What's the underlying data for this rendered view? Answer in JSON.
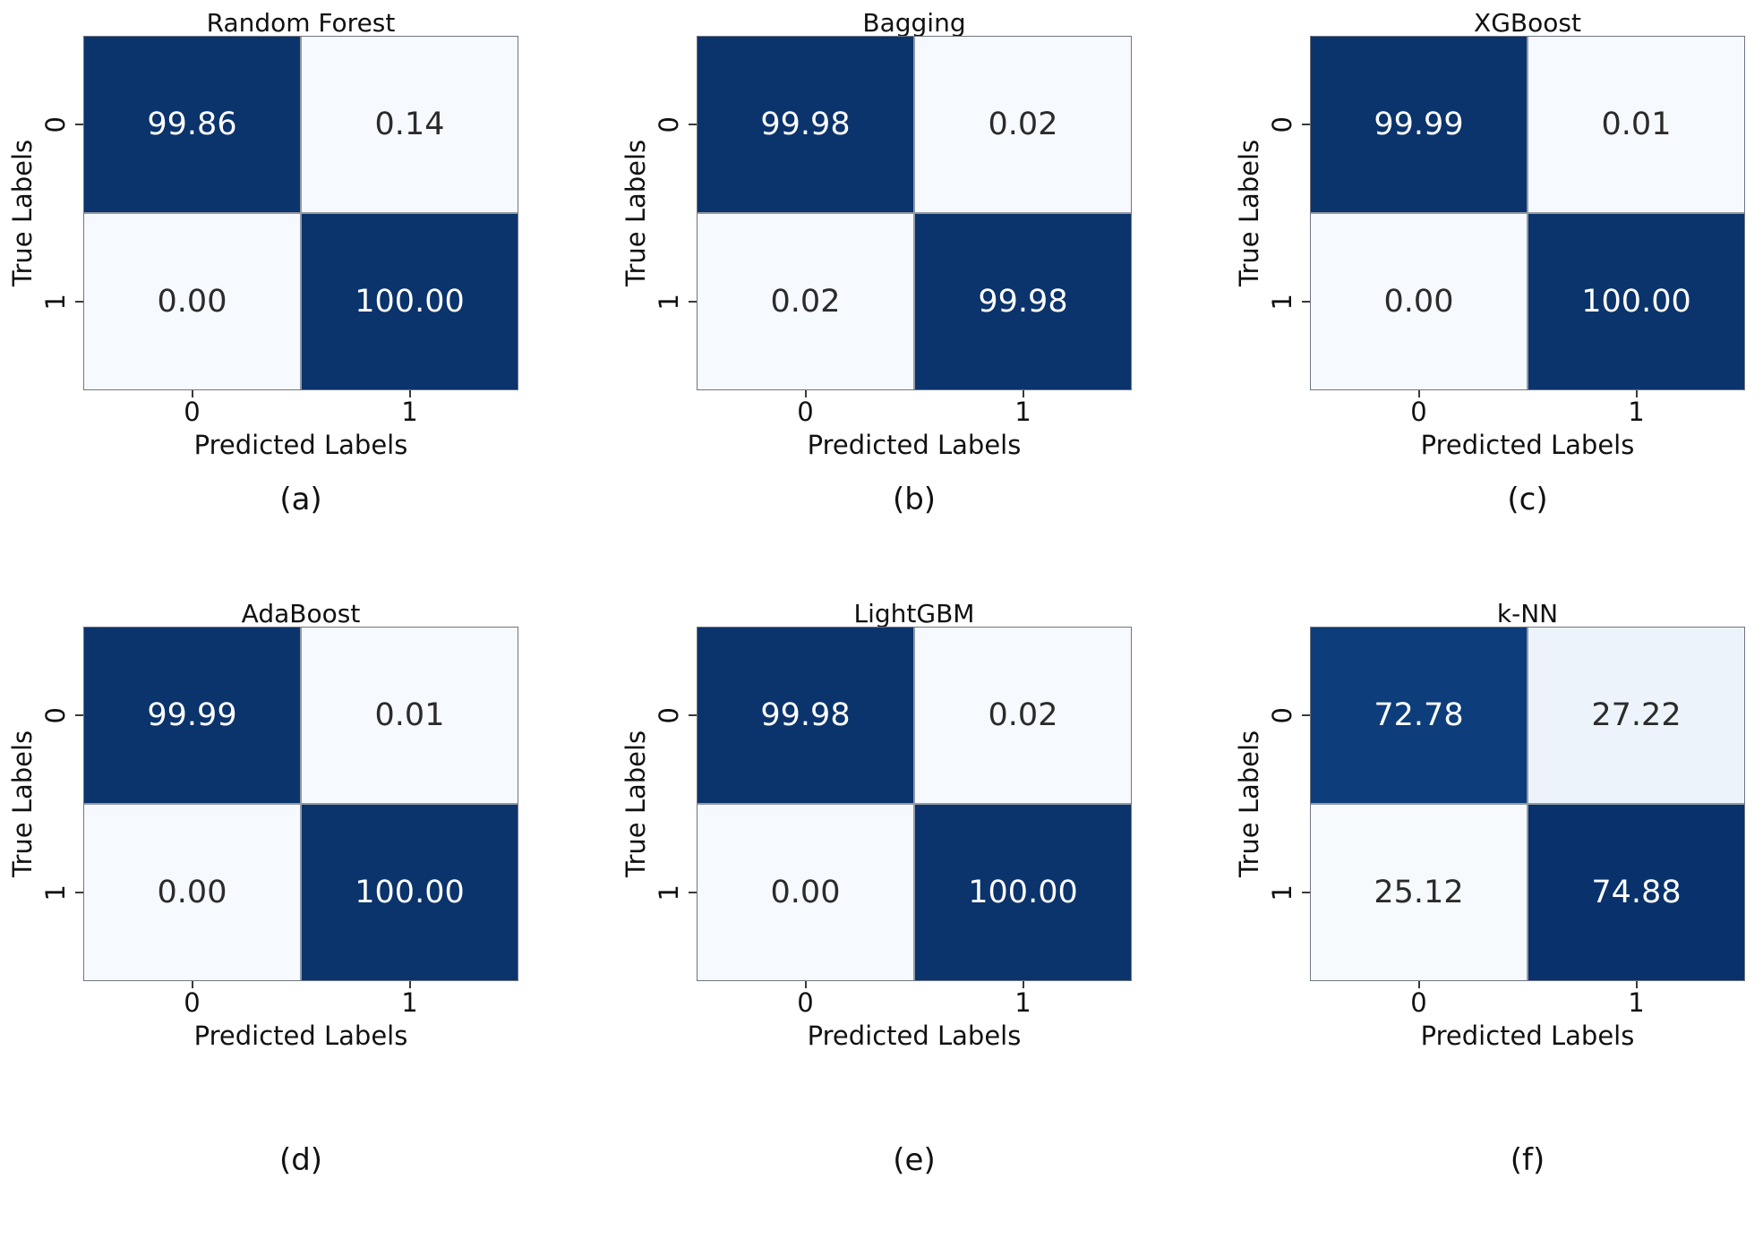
{
  "figure": {
    "ylabel": "True Labels",
    "xlabel": "Predicted Labels",
    "xtick_labels": [
      "0",
      "1"
    ],
    "ytick_labels": [
      "0",
      "1"
    ],
    "background": "#ffffff",
    "colormap": "Blues",
    "dark_cell_color": "#0b336c",
    "light_cell_color": "#f6f9fe",
    "gridline_color": "#929aa5"
  },
  "chart_data": [
    {
      "type": "heatmap",
      "title": "Random Forest",
      "caption": "(a)",
      "xlabel": "Predicted Labels",
      "ylabel": "True Labels",
      "x_categories": [
        "0",
        "1"
      ],
      "y_categories": [
        "0",
        "1"
      ],
      "values": [
        [
          99.86,
          0.14
        ],
        [
          0.0,
          100.0
        ]
      ],
      "cells": [
        {
          "value": "99.86",
          "bg": "#0b336c",
          "fg": "#ffffff"
        },
        {
          "value": "0.14",
          "bg": "#f6f9fe",
          "fg": "#2b2b2b"
        },
        {
          "value": "0.00",
          "bg": "#f6f9fe",
          "fg": "#2b2b2b"
        },
        {
          "value": "100.00",
          "bg": "#0b336c",
          "fg": "#ffffff"
        }
      ]
    },
    {
      "type": "heatmap",
      "title": "Bagging",
      "caption": "(b)",
      "xlabel": "Predicted Labels",
      "ylabel": "True Labels",
      "x_categories": [
        "0",
        "1"
      ],
      "y_categories": [
        "0",
        "1"
      ],
      "values": [
        [
          99.98,
          0.02
        ],
        [
          0.02,
          99.98
        ]
      ],
      "cells": [
        {
          "value": "99.98",
          "bg": "#0b336c",
          "fg": "#ffffff"
        },
        {
          "value": "0.02",
          "bg": "#f6f9fe",
          "fg": "#2b2b2b"
        },
        {
          "value": "0.02",
          "bg": "#f6f9fe",
          "fg": "#2b2b2b"
        },
        {
          "value": "99.98",
          "bg": "#0b336c",
          "fg": "#ffffff"
        }
      ]
    },
    {
      "type": "heatmap",
      "title": "XGBoost",
      "caption": "(c)",
      "xlabel": "Predicted Labels",
      "ylabel": "True Labels",
      "x_categories": [
        "0",
        "1"
      ],
      "y_categories": [
        "0",
        "1"
      ],
      "values": [
        [
          99.99,
          0.01
        ],
        [
          0.0,
          100.0
        ]
      ],
      "cells": [
        {
          "value": "99.99",
          "bg": "#0b336c",
          "fg": "#ffffff"
        },
        {
          "value": "0.01",
          "bg": "#f6f9fe",
          "fg": "#2b2b2b"
        },
        {
          "value": "0.00",
          "bg": "#f6f9fe",
          "fg": "#2b2b2b"
        },
        {
          "value": "100.00",
          "bg": "#0b336c",
          "fg": "#ffffff"
        }
      ]
    },
    {
      "type": "heatmap",
      "title": "AdaBoost",
      "caption": "(d)",
      "xlabel": "Predicted Labels",
      "ylabel": "True Labels",
      "x_categories": [
        "0",
        "1"
      ],
      "y_categories": [
        "0",
        "1"
      ],
      "values": [
        [
          99.99,
          0.01
        ],
        [
          0.0,
          100.0
        ]
      ],
      "cells": [
        {
          "value": "99.99",
          "bg": "#0b336c",
          "fg": "#ffffff"
        },
        {
          "value": "0.01",
          "bg": "#f6f9fe",
          "fg": "#2b2b2b"
        },
        {
          "value": "0.00",
          "bg": "#f6f9fe",
          "fg": "#2b2b2b"
        },
        {
          "value": "100.00",
          "bg": "#0b336c",
          "fg": "#ffffff"
        }
      ]
    },
    {
      "type": "heatmap",
      "title": "LightGBM",
      "caption": "(e)",
      "xlabel": "Predicted Labels",
      "ylabel": "True Labels",
      "x_categories": [
        "0",
        "1"
      ],
      "y_categories": [
        "0",
        "1"
      ],
      "values": [
        [
          99.98,
          0.02
        ],
        [
          0.0,
          100.0
        ]
      ],
      "cells": [
        {
          "value": "99.98",
          "bg": "#0b336c",
          "fg": "#ffffff"
        },
        {
          "value": "0.02",
          "bg": "#f6f9fe",
          "fg": "#2b2b2b"
        },
        {
          "value": "0.00",
          "bg": "#f6f9fe",
          "fg": "#2b2b2b"
        },
        {
          "value": "100.00",
          "bg": "#0b336c",
          "fg": "#ffffff"
        }
      ]
    },
    {
      "type": "heatmap",
      "title": "k-NN",
      "caption": "(f)",
      "xlabel": "Predicted Labels",
      "ylabel": "True Labels",
      "x_categories": [
        "0",
        "1"
      ],
      "y_categories": [
        "0",
        "1"
      ],
      "values": [
        [
          72.78,
          27.22
        ],
        [
          25.12,
          74.88
        ]
      ],
      "cells": [
        {
          "value": "72.78",
          "bg": "#0d3d7a",
          "fg": "#ffffff"
        },
        {
          "value": "27.22",
          "bg": "#ecf3fb",
          "fg": "#2b2b2b"
        },
        {
          "value": "25.12",
          "bg": "#f6fafd",
          "fg": "#2b2b2b"
        },
        {
          "value": "74.88",
          "bg": "#09316c",
          "fg": "#ffffff"
        }
      ]
    }
  ]
}
